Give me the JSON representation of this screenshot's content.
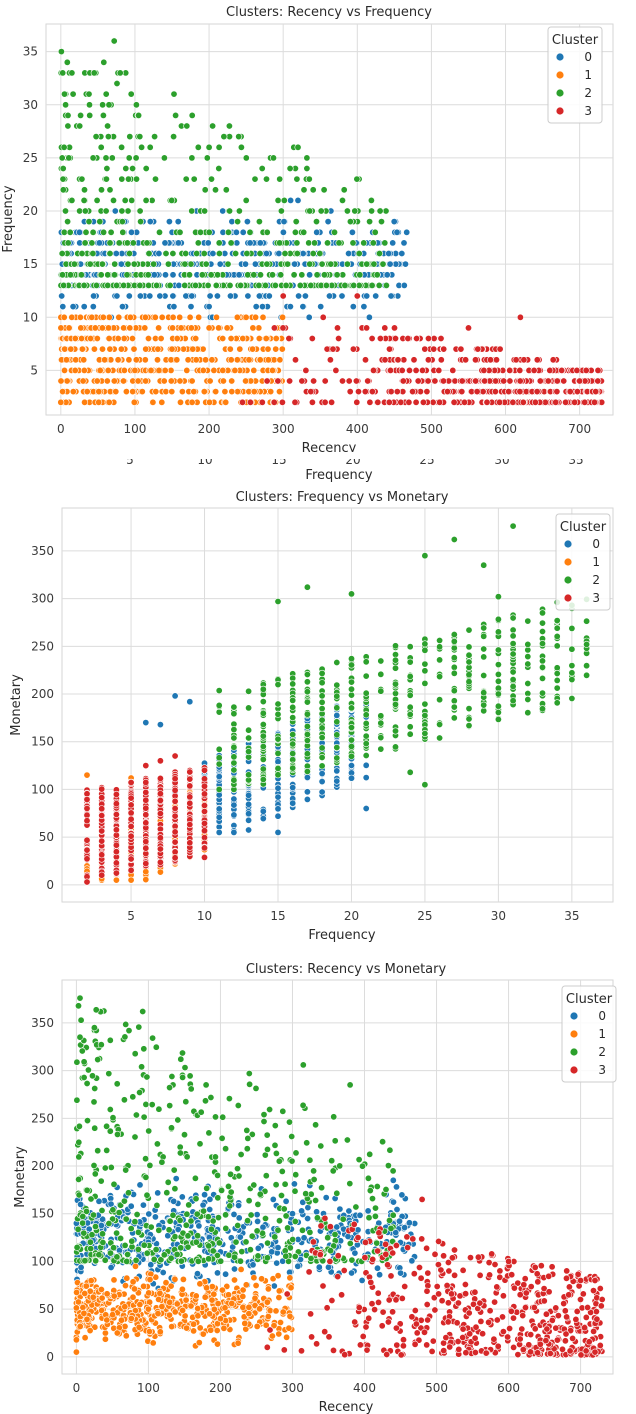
{
  "chart_data": [
    {
      "type": "scatter",
      "title": "Clusters: Recency vs Frequency",
      "xlabel": "Recency",
      "ylabel": "Frequency",
      "xlim": [
        -20,
        745
      ],
      "ylim": [
        0.8,
        37.6
      ],
      "xticks": [
        0,
        100,
        200,
        300,
        400,
        500,
        600,
        700
      ],
      "yticks": [
        5,
        10,
        15,
        20,
        25,
        30,
        35
      ],
      "grid": true,
      "legend": {
        "title": "Cluster",
        "placement": "top-right",
        "entries": [
          "0",
          "1",
          "2",
          "3"
        ]
      },
      "series": [
        {
          "name": "0",
          "color": "#1f77b4",
          "recency_range": [
            0,
            470
          ],
          "frequency_range": [
            9,
            21
          ],
          "sample_points": [
            [
              0,
              14
            ],
            [
              50,
              13
            ],
            [
              120,
              12
            ],
            [
              200,
              11
            ],
            [
              300,
              12
            ],
            [
              380,
              15
            ],
            [
              430,
              16
            ],
            [
              465,
              15
            ],
            [
              320,
              21
            ],
            [
              310,
              21
            ]
          ]
        },
        {
          "name": "1",
          "color": "#ff7f0e",
          "recency_range": [
            0,
            300
          ],
          "frequency_range": [
            2,
            10
          ],
          "sample_points": [
            [
              0,
              2
            ],
            [
              100,
              5
            ],
            [
              150,
              7
            ],
            [
              200,
              9
            ],
            [
              250,
              10
            ],
            [
              280,
              6
            ],
            [
              295,
              3
            ]
          ]
        },
        {
          "name": "2",
          "color": "#2ca02c",
          "recency_range": [
            0,
            440
          ],
          "frequency_range": [
            13,
            36
          ],
          "sample_points": [
            [
              72,
              36
            ],
            [
              15,
              33
            ],
            [
              45,
              33
            ],
            [
              5,
              31
            ],
            [
              38,
              31
            ],
            [
              95,
              31
            ],
            [
              105,
              29
            ],
            [
              320,
              26
            ],
            [
              220,
              27
            ],
            [
              240,
              27
            ],
            [
              170,
              28
            ],
            [
              380,
              21
            ],
            [
              430,
              16
            ]
          ]
        },
        {
          "name": "3",
          "color": "#d62728",
          "recency_range": [
            240,
            730
          ],
          "frequency_range": [
            2,
            12
          ],
          "sample_points": [
            [
              300,
              12
            ],
            [
              400,
              12
            ],
            [
              620,
              10
            ],
            [
              700,
              4
            ],
            [
              720,
              2
            ],
            [
              550,
              9
            ],
            [
              480,
              8
            ]
          ]
        }
      ]
    },
    {
      "type": "scatter",
      "title": "Clusters: Frequency vs Monetary",
      "xlabel": "Frequency",
      "ylabel": "Monetary",
      "xlim": [
        0.3,
        37.8
      ],
      "ylim": [
        -18,
        395
      ],
      "xticks": [
        5,
        10,
        15,
        20,
        25,
        30,
        35
      ],
      "yticks": [
        0,
        50,
        100,
        150,
        200,
        250,
        300,
        350
      ],
      "grid": true,
      "legend": {
        "title": "Cluster",
        "placement": "top-right",
        "entries": [
          "0",
          "1",
          "2",
          "3"
        ]
      },
      "series": [
        {
          "name": "0",
          "color": "#1f77b4",
          "frequency_range": [
            6,
            21
          ],
          "monetary_range": [
            55,
            200
          ],
          "sample_points": [
            [
              8,
              198
            ],
            [
              9,
              192
            ],
            [
              7,
              168
            ],
            [
              6,
              170
            ],
            [
              15,
              55
            ],
            [
              21,
              80
            ],
            [
              20,
              150
            ]
          ]
        },
        {
          "name": "1",
          "color": "#ff7f0e",
          "frequency_range": [
            2,
            10
          ],
          "monetary_range": [
            5,
            115
          ],
          "sample_points": [
            [
              2,
              115
            ],
            [
              2,
              10
            ],
            [
              5,
              112
            ],
            [
              10,
              100
            ],
            [
              8,
              30
            ]
          ]
        },
        {
          "name": "2",
          "color": "#2ca02c",
          "frequency_range": [
            11,
            36
          ],
          "monetary_range": [
            100,
            376
          ],
          "sample_points": [
            [
              31,
              376
            ],
            [
              27,
              362
            ],
            [
              25,
              345
            ],
            [
              29,
              335
            ],
            [
              17,
              312
            ],
            [
              30,
              302
            ],
            [
              20,
              305
            ],
            [
              33,
              285
            ],
            [
              36,
              252
            ],
            [
              31,
              242
            ],
            [
              33,
              228
            ],
            [
              31,
              193
            ],
            [
              25,
              105
            ],
            [
              24,
              118
            ],
            [
              15,
              297
            ]
          ]
        },
        {
          "name": "3",
          "color": "#d62728",
          "frequency_range": [
            2,
            10
          ],
          "monetary_range": [
            3,
            135
          ],
          "sample_points": [
            [
              2,
              80
            ],
            [
              2,
              3
            ],
            [
              6,
              125
            ],
            [
              7,
              130
            ],
            [
              8,
              135
            ],
            [
              10,
              120
            ],
            [
              4,
              85
            ]
          ]
        }
      ]
    },
    {
      "type": "scatter",
      "title": "Clusters: Recency vs Monetary",
      "xlabel": "Recency",
      "ylabel": "Monetary",
      "xlim": [
        -20,
        745
      ],
      "ylim": [
        -18,
        395
      ],
      "xticks": [
        0,
        100,
        200,
        300,
        400,
        500,
        600,
        700
      ],
      "yticks": [
        0,
        50,
        100,
        150,
        200,
        250,
        300,
        350
      ],
      "grid": true,
      "legend": {
        "title": "Cluster",
        "placement": "top-right",
        "entries": [
          "0",
          "1",
          "2",
          "3"
        ]
      },
      "series": [
        {
          "name": "0",
          "color": "#1f77b4",
          "recency_range": [
            0,
            470
          ],
          "monetary_range": [
            60,
            195
          ],
          "sample_points": [
            [
              0,
              140
            ],
            [
              100,
              120
            ],
            [
              200,
              110
            ],
            [
              300,
              150
            ],
            [
              380,
              140
            ],
            [
              440,
              185
            ],
            [
              430,
              170
            ]
          ]
        },
        {
          "name": "1",
          "color": "#ff7f0e",
          "recency_range": [
            0,
            300
          ],
          "monetary_range": [
            2,
            100
          ],
          "sample_points": [
            [
              0,
              5
            ],
            [
              100,
              50
            ],
            [
              200,
              40
            ],
            [
              280,
              85
            ],
            [
              295,
              30
            ]
          ]
        },
        {
          "name": "2",
          "color": "#2ca02c",
          "recency_range": [
            0,
            440
          ],
          "monetary_range": [
            100,
            376
          ],
          "sample_points": [
            [
              5,
              376
            ],
            [
              25,
              345
            ],
            [
              5,
              335
            ],
            [
              92,
              362
            ],
            [
              145,
              312
            ],
            [
              315,
              306
            ],
            [
              240,
              297
            ],
            [
              380,
              285
            ],
            [
              180,
              285
            ]
          ]
        },
        {
          "name": "3",
          "color": "#d62728",
          "recency_range": [
            260,
            730
          ],
          "monetary_range": [
            2,
            165
          ],
          "sample_points": [
            [
              480,
              165
            ],
            [
              420,
              130
            ],
            [
              700,
              80
            ],
            [
              720,
              80
            ],
            [
              600,
              100
            ],
            [
              720,
              5
            ],
            [
              265,
              10
            ]
          ]
        }
      ]
    }
  ],
  "overlap_axis": {
    "label": "Frequency",
    "ticks": [
      "5",
      "10",
      "15",
      "20",
      "25",
      "30",
      "35"
    ]
  }
}
